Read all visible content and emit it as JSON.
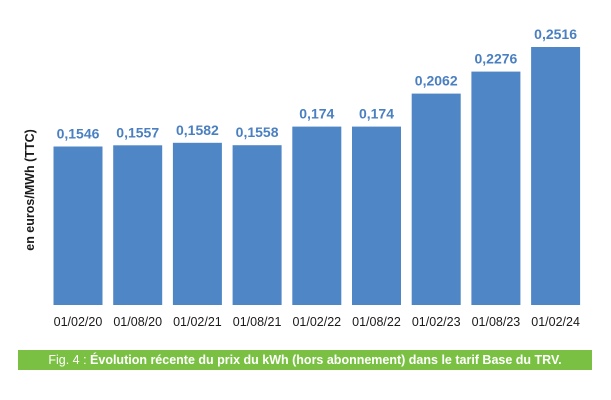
{
  "chart_data": {
    "type": "bar",
    "categories": [
      "01/02/20",
      "01/08/20",
      "01/02/21",
      "01/08/21",
      "01/02/22",
      "01/08/22",
      "01/02/23",
      "01/08/23",
      "01/02/24"
    ],
    "values": [
      0.1546,
      0.1557,
      0.1582,
      0.1558,
      0.174,
      0.174,
      0.2062,
      0.2276,
      0.2516
    ],
    "value_labels": [
      "0,1546",
      "0,1557",
      "0,1582",
      "0,1558",
      "0,174",
      "0,174",
      "0,2062",
      "0,2276",
      "0,2516"
    ],
    "ylabel": "en euros/MWh (TTC)",
    "xlabel": "",
    "ylim": [
      0,
      0.2516
    ],
    "grid": false,
    "colors": {
      "bar": "#4f86c6",
      "value_label": "#4a7fc1",
      "caption_bg": "#7ac143"
    }
  },
  "caption": {
    "prefix": "Fig. 4 : ",
    "text": "Évolution récente du prix du kWh (hors abonnement) dans le tarif Base du TRV."
  }
}
